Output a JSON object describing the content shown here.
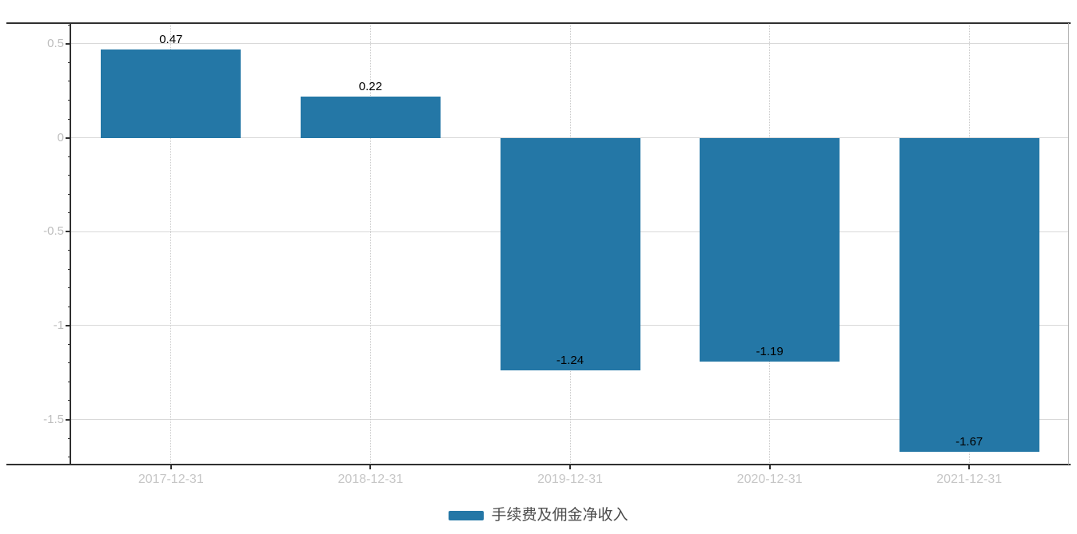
{
  "chart_data": {
    "type": "bar",
    "title": "",
    "categories": [
      "2017-12-31",
      "2018-12-31",
      "2019-12-31",
      "2020-12-31",
      "2021-12-31"
    ],
    "series": [
      {
        "name": "手续费及佣金净收入",
        "values": [
          0.47,
          0.22,
          -1.24,
          -1.19,
          -1.67
        ],
        "color": "#2477a6"
      }
    ],
    "value_labels": [
      "0.47",
      "0.22",
      "-1.24",
      "-1.19",
      "-1.67"
    ],
    "xlabel": "",
    "ylabel": "",
    "ylim": [
      -1.74,
      0.61
    ],
    "yticks": [
      0.5,
      0,
      -0.5,
      -1,
      -1.5
    ],
    "ytick_labels": [
      "0.5",
      "0",
      "-0.5",
      "-1",
      "-1.5"
    ],
    "minor_tick_step": 0.1,
    "grid": true,
    "horizontal_grid_style": "solid",
    "vertical_grid_style": "dotted",
    "legend": {
      "position": "bottom-center",
      "items": [
        {
          "label": "手续费及佣金净收入",
          "color": "#2477a6"
        }
      ]
    }
  },
  "colors": {
    "bar": "#2477a6",
    "axis_line": "#303030",
    "grid_line": "#d9d9d9",
    "dotted_grid_line": "#c9c9c9",
    "right_border": "#b3b3b3",
    "y_tick_label": "#bdbdbd",
    "x_tick_label": "#c6c6c6",
    "value_label": "#000000",
    "legend_text": "#4d4d4d",
    "background": "#ffffff"
  }
}
